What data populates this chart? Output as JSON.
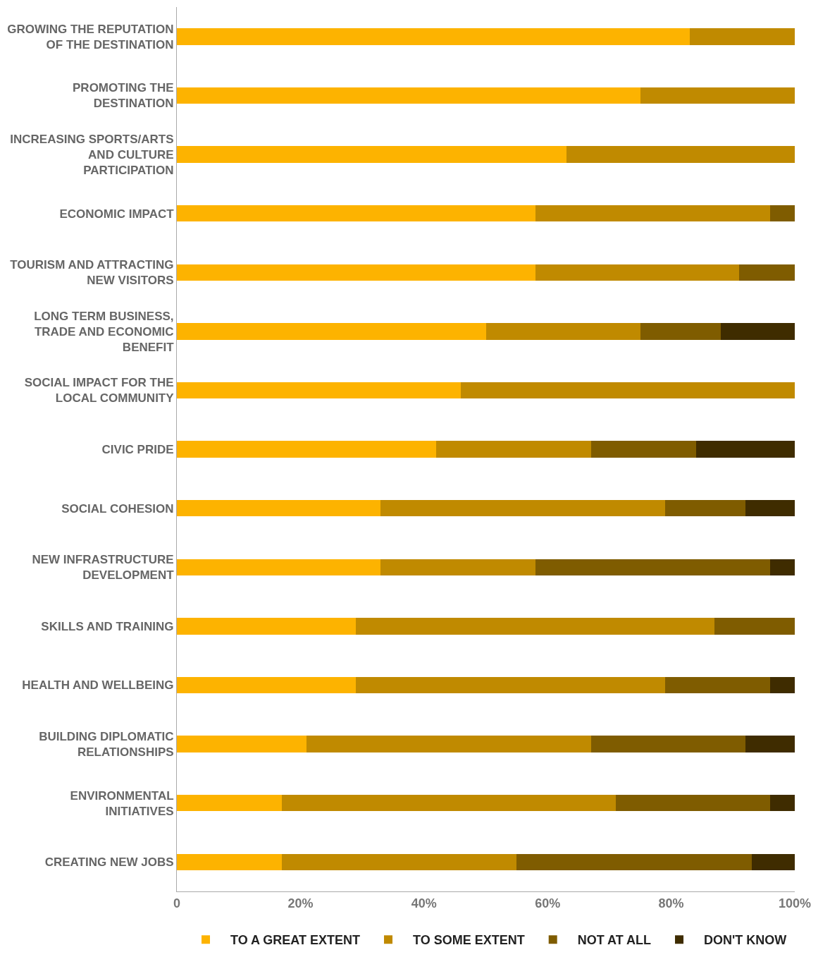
{
  "chart_data": {
    "type": "bar",
    "orientation": "horizontal",
    "stacked": true,
    "categories": [
      "GROWING THE REPUTATION OF THE DESTINATION",
      "PROMOTING THE DESTINATION",
      "INCREASING SPORTS/ARTS AND CULTURE PARTICIPATION",
      "ECONOMIC IMPACT",
      "TOURISM AND ATTRACTING NEW VISITORS",
      "LONG TERM BUSINESS, TRADE AND ECONOMIC BENEFIT",
      "SOCIAL IMPACT FOR THE LOCAL COMMUNITY",
      "CIVIC PRIDE",
      "SOCIAL COHESION",
      "NEW INFRASTRUCTURE DEVELOPMENT",
      "SKILLS AND TRAINING",
      "HEALTH AND WELLBEING",
      "BUILDING DIPLOMATIC RELATIONSHIPS",
      "ENVIRONMENTAL INITIATIVES",
      "CREATING NEW JOBS"
    ],
    "series": [
      {
        "name": "TO A GREAT EXTENT",
        "color": "#fdb300",
        "values": [
          83,
          75,
          63,
          58,
          58,
          50,
          46,
          42,
          33,
          33,
          29,
          29,
          21,
          17,
          17
        ]
      },
      {
        "name": "TO SOME EXTENT",
        "color": "#c08a00",
        "values": [
          17,
          25,
          37,
          38,
          33,
          25,
          54,
          25,
          46,
          25,
          58,
          50,
          46,
          54,
          38
        ]
      },
      {
        "name": "NOT AT ALL",
        "color": "#7f5c00",
        "values": [
          0,
          0,
          0,
          4,
          9,
          13,
          0,
          17,
          13,
          38,
          13,
          17,
          25,
          25,
          38
        ]
      },
      {
        "name": "DON'T KNOW",
        "color": "#3f2c00",
        "values": [
          0,
          0,
          0,
          0,
          0,
          12,
          0,
          16,
          8,
          4,
          0,
          4,
          8,
          4,
          7
        ]
      }
    ],
    "xlim": [
      0,
      100
    ],
    "xticks": [
      {
        "value": 0,
        "label": "0"
      },
      {
        "value": 20,
        "label": "20%"
      },
      {
        "value": 40,
        "label": "40%"
      },
      {
        "value": 60,
        "label": "60%"
      },
      {
        "value": 80,
        "label": "80%"
      },
      {
        "value": 100,
        "label": "100%"
      }
    ],
    "grid": false,
    "legend": "bottom"
  }
}
